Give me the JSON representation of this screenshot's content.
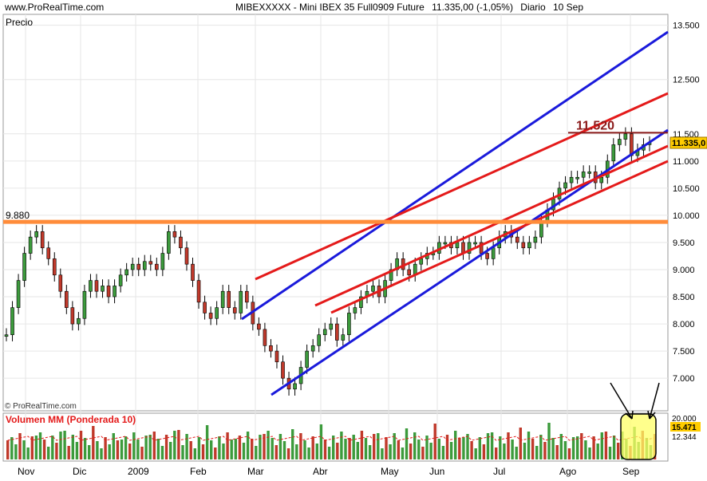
{
  "header": {
    "site": "www.ProRealTime.com",
    "symbol": "MIBEXXXXX - Mini IBEX 35 Full0909 Future",
    "last_change": "11.335,00 (-1,05%)",
    "period": "Diario",
    "date": "10 Sep"
  },
  "colors": {
    "channel_blue": "#1a1adb",
    "channel_red": "#e41a1a",
    "support_orange": "#ff8c3a",
    "level_dark_red": "#8b1a1a",
    "up_candle": "#3c9b3c",
    "down_candle": "#c0392b",
    "highlight_yellow": "#ffff66",
    "price_box": "#ffcc00"
  },
  "chart_data": [
    {
      "type": "line",
      "panel": "price",
      "label": "Precio",
      "watermark": "© ProRealTime.com",
      "x_axis_months": [
        "Nov",
        "Dic",
        "2009",
        "Feb",
        "Mar",
        "Abr",
        "May",
        "Jun",
        "Jul",
        "Ago",
        "Sep"
      ],
      "y_ticks": [
        "13.500",
        "12.500",
        "11.500",
        "11.000",
        "10.500",
        "10.000",
        "9.500",
        "9.000",
        "8.500",
        "8.000",
        "7.500",
        "7.000"
      ],
      "y_tick_values": [
        13500,
        12500,
        11500,
        11000,
        10500,
        10000,
        9500,
        9000,
        8500,
        8000,
        7500,
        7000
      ],
      "ylim": [
        6400,
        13700
      ],
      "last_price_label": "11.335,0",
      "last_price": 11335,
      "support_level": {
        "label": "9.880",
        "value": 9880
      },
      "resistance_level": {
        "label": "11.520",
        "value": 11520
      },
      "series": [
        {
          "x": [
            0,
            2,
            4,
            6,
            8,
            10,
            12,
            14,
            16,
            18,
            20,
            22,
            24,
            26,
            28,
            30,
            32,
            34,
            36,
            38,
            40,
            42,
            44,
            46,
            48,
            50,
            52,
            54,
            56,
            58,
            60,
            62,
            64,
            66,
            68,
            70,
            72,
            74,
            76,
            78,
            80,
            82,
            84,
            86,
            88,
            90,
            92,
            94,
            96,
            98,
            100,
            102,
            104,
            106,
            108,
            110,
            112,
            114,
            116,
            118,
            120,
            122,
            124,
            126,
            128,
            130,
            132,
            134,
            136,
            138,
            140,
            142,
            144,
            146,
            148,
            150,
            152,
            154,
            156,
            158,
            160,
            162,
            164,
            166,
            168,
            170,
            172,
            174,
            176,
            178,
            180,
            182,
            184,
            186,
            188,
            190,
            192,
            194,
            196,
            198,
            200,
            202,
            204,
            206,
            208,
            210,
            212,
            214
          ],
          "y": [
            7800,
            8300,
            8800,
            9300,
            9600,
            9700,
            9400,
            9200,
            8900,
            8600,
            8300,
            8000,
            8100,
            8600,
            8800,
            8600,
            8700,
            8500,
            8700,
            8900,
            9000,
            9100,
            9000,
            9150,
            9100,
            9000,
            9300,
            9700,
            9600,
            9400,
            9100,
            8800,
            8400,
            8200,
            8100,
            8300,
            8600,
            8300,
            8200,
            8600,
            8400,
            8000,
            7900,
            7600,
            7500,
            7300,
            7000,
            6800,
            6900,
            7200,
            7500,
            7600,
            7800,
            7900,
            8000,
            7700,
            7800,
            8200,
            8300,
            8500,
            8600,
            8700,
            8500,
            8800,
            9000,
            9200,
            9000,
            8900,
            9100,
            9200,
            9300,
            9300,
            9500,
            9500,
            9400,
            9500,
            9300,
            9500,
            9500,
            9300,
            9200,
            9400,
            9600,
            9700,
            9600,
            9500,
            9400,
            9500,
            9600,
            9900,
            10100,
            10300,
            10500,
            10600,
            10700,
            10700,
            10800,
            10800,
            10600,
            10700,
            11000,
            11300,
            11400,
            11500,
            11100,
            11200,
            11300,
            11335
          ]
        }
      ]
    },
    {
      "type": "bar",
      "panel": "volume",
      "label": "Volumen MM (Ponderada 10)",
      "y_ticks": [
        "20.000",
        "15.471",
        "12.344"
      ],
      "current_value": "15.471",
      "ma_value": "12.344"
    }
  ]
}
